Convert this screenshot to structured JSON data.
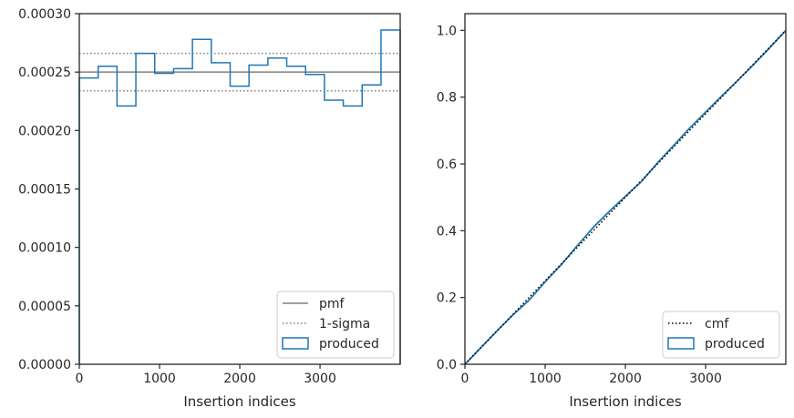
{
  "chart_data": [
    {
      "type": "line",
      "subtype": "step-histogram",
      "xlabel": "Insertion indices",
      "ylabel": "",
      "xlim": [
        0,
        3999
      ],
      "ylim": [
        0,
        0.0003
      ],
      "x_ticks": [
        0,
        1000,
        2000,
        3000
      ],
      "x_tick_labels": [
        "0",
        "1000",
        "2000",
        "3000"
      ],
      "y_ticks": [
        0,
        5e-05,
        0.0001,
        0.00015,
        0.0002,
        0.00025,
        0.0003
      ],
      "y_tick_labels": [
        "0.00000",
        "0.00005",
        "0.00010",
        "0.00015",
        "0.00020",
        "0.00025",
        "0.00030"
      ],
      "grid": false,
      "legend_position": "lower-right",
      "bin_edges": [
        0,
        235,
        470,
        705,
        940,
        1175,
        1410,
        1645,
        1880,
        2115,
        2350,
        2585,
        2820,
        3055,
        3290,
        3525,
        3760,
        3999
      ],
      "series": [
        {
          "name": "pmf",
          "kind": "hline",
          "values": [
            0.00025
          ],
          "color": "#808080",
          "style": "solid"
        },
        {
          "name": "1-sigma",
          "kind": "hline",
          "values": [
            0.000234,
            0.000266
          ],
          "color": "#808080",
          "style": "dotted"
        },
        {
          "name": "produced",
          "kind": "step",
          "color": "#1f77b4",
          "values": [
            0.000245,
            0.000255,
            0.000221,
            0.000266,
            0.000249,
            0.000253,
            0.000278,
            0.000258,
            0.000238,
            0.000256,
            0.000262,
            0.000255,
            0.000248,
            0.000226,
            0.000221,
            0.000239,
            0.000286
          ]
        }
      ]
    },
    {
      "type": "line",
      "xlabel": "Insertion indices",
      "ylabel": "",
      "xlim": [
        0,
        3999
      ],
      "ylim": [
        0,
        1.05
      ],
      "x_ticks": [
        0,
        1000,
        2000,
        3000
      ],
      "x_tick_labels": [
        "0",
        "1000",
        "2000",
        "3000"
      ],
      "y_ticks": [
        0,
        0.2,
        0.4,
        0.6,
        0.8,
        1.0
      ],
      "y_tick_labels": [
        "0.0",
        "0.2",
        "0.4",
        "0.6",
        "0.8",
        "1.0"
      ],
      "grid": false,
      "legend_position": "lower-right",
      "series": [
        {
          "name": "cmf",
          "style": "dotted",
          "color": "#000000",
          "x": [
            0,
            3999
          ],
          "values": [
            0,
            1.0
          ]
        },
        {
          "name": "produced",
          "style": "solid",
          "color": "#1f77b4",
          "x": [
            0,
            200,
            400,
            600,
            800,
            1000,
            1200,
            1400,
            1600,
            1800,
            2000,
            2200,
            2400,
            2600,
            2800,
            3000,
            3200,
            3400,
            3600,
            3800,
            3999
          ],
          "values": [
            0,
            0.05,
            0.1,
            0.148,
            0.192,
            0.247,
            0.298,
            0.355,
            0.41,
            0.458,
            0.503,
            0.547,
            0.603,
            0.655,
            0.707,
            0.755,
            0.803,
            0.85,
            0.898,
            0.948,
            1.0
          ]
        }
      ]
    }
  ]
}
